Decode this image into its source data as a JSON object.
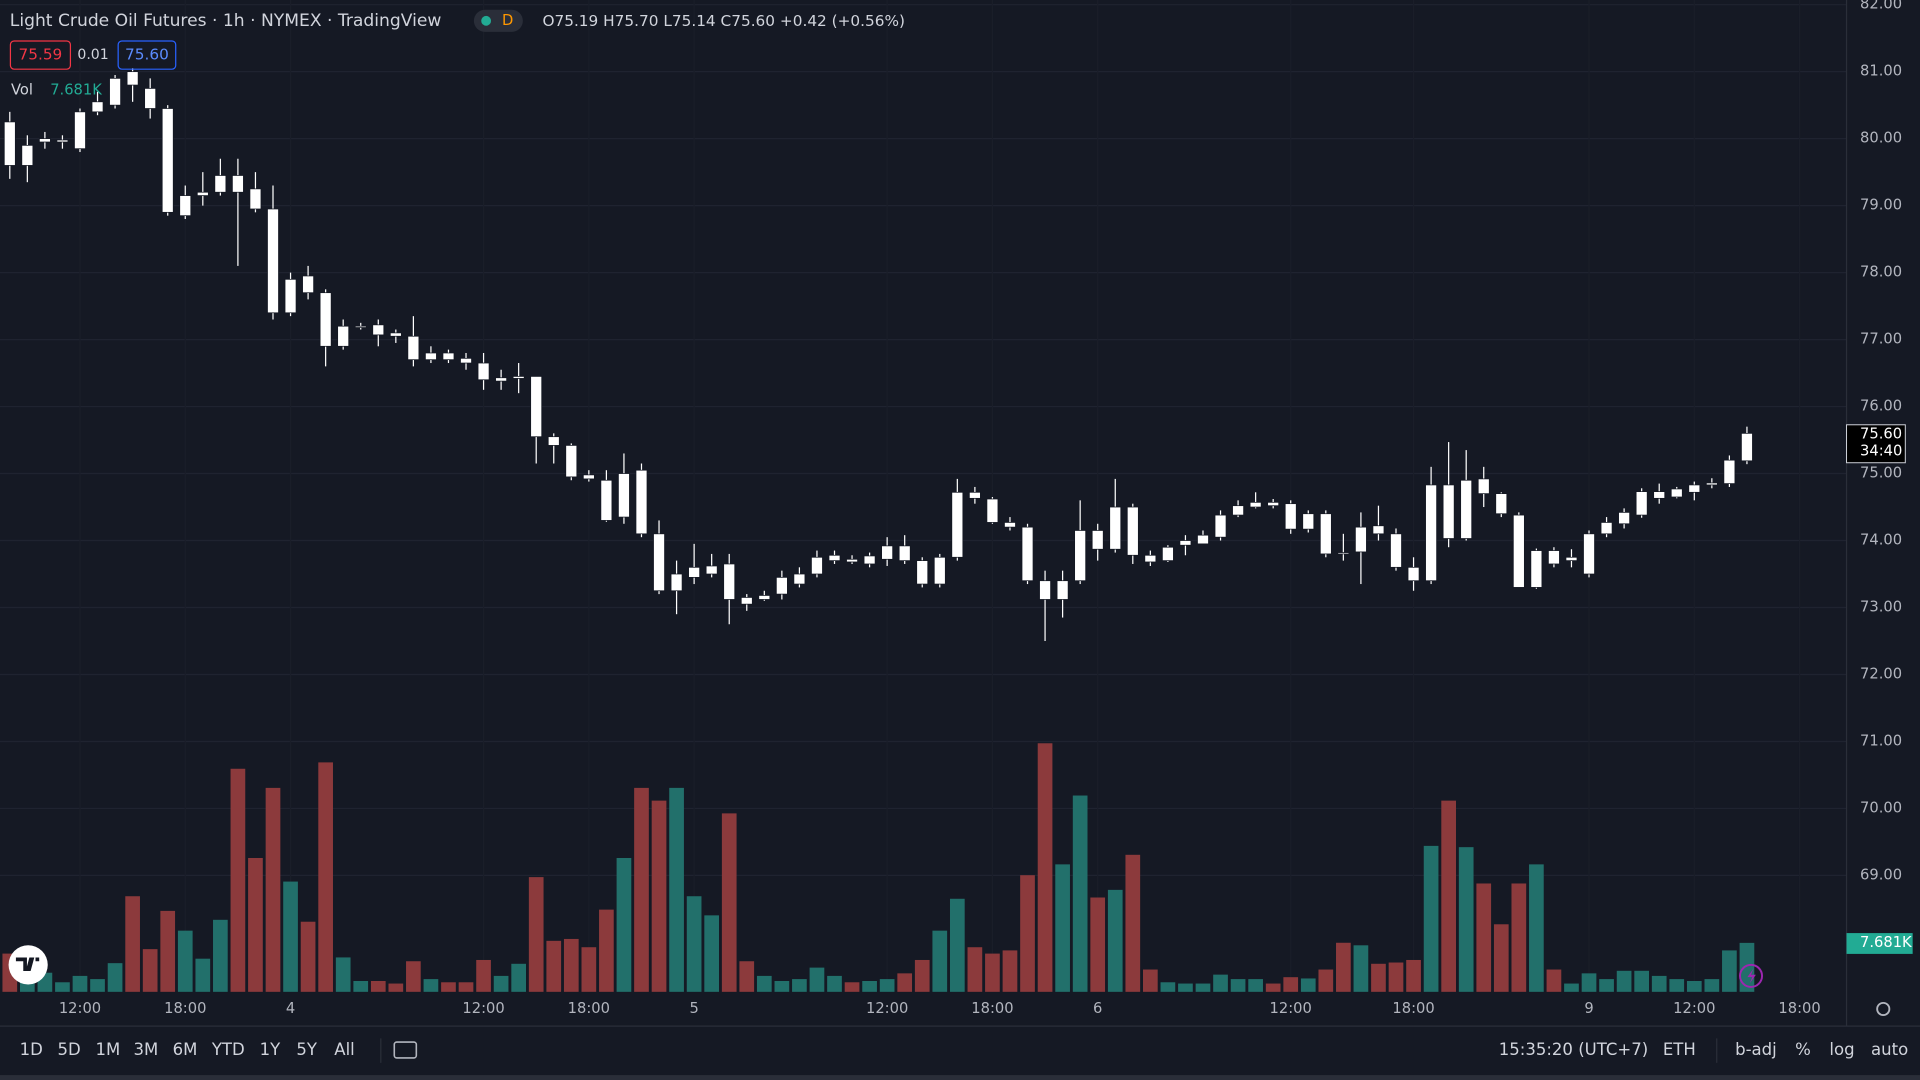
{
  "header": {
    "title": "Light Crude Oil Futures · 1h · NYMEX · TradingView",
    "badge": "D",
    "ohlc": {
      "o_label": "O",
      "o": "75.19",
      "h_label": "H",
      "h": "75.70",
      "l_label": "L",
      "l": "75.14",
      "c_label": "C",
      "c": "75.60",
      "change": "+0.42 (+0.56%)"
    },
    "sell": "75.59",
    "spread": "0.01",
    "buy": "75.60",
    "vol_label": "Vol",
    "vol_value": "7.681K"
  },
  "price_tag": {
    "price": "75.60",
    "countdown": "34:40"
  },
  "volume_tag": "7.681K",
  "toolbar": {
    "ranges": [
      "1D",
      "5D",
      "1M",
      "3M",
      "6M",
      "YTD",
      "1Y",
      "5Y",
      "All"
    ],
    "clock": "15:35:20 (UTC+7)",
    "session": "ETH",
    "adjust": "b-adj",
    "percent": "%",
    "log": "log",
    "auto": "auto"
  },
  "chart_data": {
    "type": "candlestick",
    "candle_color": "#ffffff",
    "volume_up_color": "#22706b",
    "volume_down_color": "#8c3a3c",
    "grid": true,
    "ylim": [
      66.75,
      82.07
    ],
    "yticks": [
      {
        "value": 69,
        "label": "69.00"
      },
      {
        "value": 70,
        "label": "70.00"
      },
      {
        "value": 71,
        "label": "71.00"
      },
      {
        "value": 72,
        "label": "72.00"
      },
      {
        "value": 73,
        "label": "73.00"
      },
      {
        "value": 74,
        "label": "74.00"
      },
      {
        "value": 75,
        "label": "75.00"
      },
      {
        "value": 76,
        "label": "76.00"
      },
      {
        "value": 77,
        "label": "77.00"
      },
      {
        "value": 78,
        "label": "78.00"
      },
      {
        "value": 79,
        "label": "79.00"
      },
      {
        "value": 80,
        "label": "80.00"
      },
      {
        "value": 81,
        "label": "81.00"
      },
      {
        "value": 82,
        "label": "82.00"
      }
    ],
    "xticks": [
      {
        "value": 4,
        "label": "12:00"
      },
      {
        "value": 10,
        "label": "18:00"
      },
      {
        "value": 16,
        "label": "4"
      },
      {
        "value": 27,
        "label": "12:00"
      },
      {
        "value": 33,
        "label": "18:00"
      },
      {
        "value": 39,
        "label": "5"
      },
      {
        "value": 50,
        "label": "12:00"
      },
      {
        "value": 56,
        "label": "18:00"
      },
      {
        "value": 62,
        "label": "6"
      },
      {
        "value": 73,
        "label": "12:00"
      },
      {
        "value": 80,
        "label": "18:00"
      },
      {
        "value": 90,
        "label": "9"
      },
      {
        "value": 96,
        "label": "12:00"
      },
      {
        "value": 102,
        "label": "18:00"
      }
    ],
    "open": [
      80.25,
      79.6,
      79.95,
      79.95,
      79.85,
      80.4,
      80.5,
      81.0,
      80.75,
      80.45,
      78.85,
      79.15,
      79.2,
      79.45,
      79.25,
      78.95,
      77.4,
      77.95,
      77.7,
      76.9,
      77.18,
      77.22,
      77.1,
      77.05,
      76.7,
      76.8,
      76.72,
      76.65,
      76.38,
      76.42,
      76.45,
      75.55,
      75.42,
      74.98,
      74.9,
      74.35,
      75.05,
      74.1,
      73.25,
      73.45,
      73.5,
      73.65,
      73.15,
      73.12,
      73.2,
      73.35,
      73.5,
      73.7,
      73.72,
      73.65,
      73.72,
      73.92,
      73.7,
      73.35,
      73.75,
      74.72,
      74.62,
      74.27,
      74.2,
      73.4,
      73.12,
      73.4,
      74.15,
      73.87,
      74.5,
      73.78,
      73.7,
      73.93,
      73.95,
      74.05,
      74.38,
      74.5,
      74.57,
      74.55,
      74.17,
      74.4,
      73.82,
      73.83,
      74.22,
      74.1,
      73.6,
      73.4,
      74.83,
      74.03,
      74.92,
      74.7,
      74.38,
      73.3,
      73.85,
      73.7,
      73.5,
      74.1,
      74.25,
      74.38,
      74.63,
      74.65,
      74.72,
      74.83,
      74.85,
      75.19
    ],
    "high": [
      80.4,
      80.05,
      80.1,
      80.05,
      80.45,
      80.7,
      80.95,
      81.05,
      80.9,
      80.5,
      79.3,
      79.5,
      79.7,
      79.7,
      79.5,
      79.3,
      78.0,
      78.1,
      77.75,
      77.3,
      77.25,
      77.3,
      77.15,
      77.35,
      76.9,
      76.85,
      76.8,
      76.8,
      76.55,
      76.65,
      76.45,
      75.6,
      75.45,
      75.05,
      75.05,
      75.3,
      75.15,
      74.3,
      73.7,
      73.95,
      73.8,
      73.8,
      73.2,
      73.25,
      73.55,
      73.6,
      73.85,
      73.85,
      73.78,
      73.82,
      74.05,
      74.08,
      73.75,
      73.8,
      74.92,
      74.8,
      74.65,
      74.35,
      74.25,
      73.55,
      73.55,
      74.6,
      74.25,
      74.92,
      74.55,
      73.85,
      73.93,
      74.08,
      74.15,
      74.45,
      74.6,
      74.72,
      74.62,
      74.6,
      74.45,
      74.45,
      74.1,
      74.42,
      74.52,
      74.18,
      73.75,
      75.1,
      75.47,
      75.35,
      75.1,
      74.72,
      74.42,
      73.88,
      73.9,
      73.87,
      74.15,
      74.35,
      74.48,
      74.78,
      74.85,
      74.8,
      74.88,
      74.93,
      75.27,
      75.7
    ],
    "low": [
      79.4,
      79.35,
      79.85,
      79.85,
      79.8,
      80.35,
      80.45,
      80.55,
      80.3,
      78.85,
      78.8,
      79.0,
      79.15,
      78.1,
      78.9,
      77.3,
      77.35,
      77.6,
      76.6,
      76.85,
      77.15,
      76.9,
      76.95,
      76.6,
      76.65,
      76.65,
      76.55,
      76.25,
      76.25,
      76.2,
      75.15,
      75.15,
      74.9,
      74.88,
      74.28,
      74.25,
      74.05,
      73.2,
      72.9,
      73.35,
      73.45,
      72.75,
      72.95,
      73.1,
      73.12,
      73.3,
      73.45,
      73.65,
      73.65,
      73.6,
      73.62,
      73.65,
      73.3,
      73.3,
      73.7,
      74.55,
      74.25,
      74.15,
      73.35,
      72.5,
      72.85,
      73.35,
      73.7,
      73.82,
      73.65,
      73.62,
      73.68,
      73.78,
      73.95,
      74.0,
      74.35,
      74.48,
      74.48,
      74.1,
      74.12,
      73.75,
      73.7,
      73.35,
      74.0,
      73.55,
      73.25,
      73.35,
      73.9,
      74.0,
      74.5,
      74.35,
      73.3,
      73.28,
      73.6,
      73.6,
      73.45,
      74.05,
      74.18,
      74.34,
      74.55,
      74.63,
      74.6,
      74.78,
      74.8,
      75.14
    ],
    "close": [
      79.6,
      79.9,
      80.0,
      79.98,
      80.4,
      80.55,
      80.9,
      80.8,
      80.45,
      78.9,
      79.15,
      79.2,
      79.45,
      79.2,
      78.95,
      77.4,
      77.9,
      77.7,
      76.9,
      77.2,
      77.2,
      77.07,
      77.05,
      76.7,
      76.8,
      76.7,
      76.65,
      76.4,
      76.43,
      76.45,
      75.55,
      75.42,
      74.95,
      74.92,
      74.3,
      75.0,
      74.1,
      73.25,
      73.5,
      73.6,
      73.62,
      73.12,
      73.05,
      73.18,
      73.45,
      73.5,
      73.75,
      73.78,
      73.68,
      73.77,
      73.92,
      73.7,
      73.35,
      73.75,
      74.72,
      74.63,
      74.27,
      74.2,
      73.4,
      73.12,
      73.4,
      74.15,
      73.87,
      74.5,
      73.78,
      73.68,
      73.9,
      74.0,
      74.08,
      74.38,
      74.52,
      74.57,
      74.52,
      74.17,
      74.4,
      73.8,
      73.8,
      74.2,
      74.1,
      73.6,
      73.4,
      74.83,
      74.03,
      74.9,
      74.7,
      74.4,
      73.3,
      73.85,
      73.65,
      73.75,
      74.1,
      74.27,
      74.42,
      74.73,
      74.73,
      74.77,
      74.83,
      74.86,
      75.2,
      75.6
    ],
    "volume": [
      6000,
      2000,
      3000,
      1500,
      2500,
      2000,
      4500,
      15000,
      6700,
      12700,
      9600,
      5200,
      11300,
      35000,
      21000,
      32000,
      17300,
      11000,
      36000,
      5400,
      1700,
      1700,
      1300,
      4800,
      2000,
      1500,
      1500,
      5000,
      2500,
      4400,
      18000,
      8000,
      8300,
      7000,
      12900,
      21000,
      32000,
      30000,
      32000,
      15000,
      12000,
      28000,
      4800,
      2500,
      1700,
      2000,
      3800,
      2500,
      1500,
      1700,
      2000,
      2900,
      5000,
      9600,
      14600,
      7000,
      6000,
      6500,
      18300,
      39000,
      20000,
      30800,
      14800,
      16000,
      21500,
      3500,
      1500,
      1300,
      1300,
      2700,
      2000,
      2000,
      1300,
      2300,
      2100,
      3500,
      7700,
      7300,
      4400,
      4600,
      5000,
      22900,
      30000,
      22700,
      17000,
      10600,
      17000,
      20000,
      3500,
      1300,
      2900,
      2000,
      3300,
      3300,
      2500,
      2000,
      1700,
      2000,
      6500,
      7681
    ]
  }
}
